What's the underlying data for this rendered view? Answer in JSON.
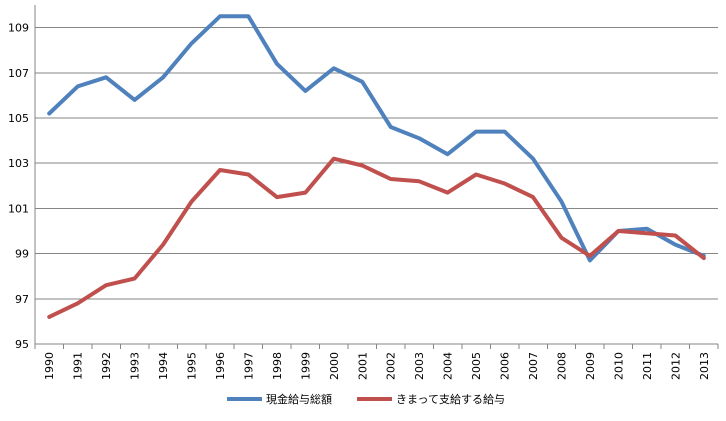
{
  "chart_data": {
    "type": "line",
    "title": "",
    "xlabel": "",
    "ylabel": "",
    "x": [
      "1990",
      "1991",
      "1992",
      "1993",
      "1994",
      "1995",
      "1996",
      "1997",
      "1998",
      "1999",
      "2000",
      "2001",
      "2002",
      "2003",
      "2004",
      "2005",
      "2006",
      "2007",
      "2008",
      "2009",
      "2010",
      "2011",
      "2012",
      "2013"
    ],
    "ylim": [
      95,
      110
    ],
    "yticks": [
      95,
      97,
      99,
      101,
      103,
      105,
      107,
      109
    ],
    "grid": "horizontal",
    "legend": "bottom",
    "series": [
      {
        "name": "現金給与総額",
        "color": "#4F81BD",
        "values": [
          105.2,
          106.4,
          106.8,
          105.8,
          106.8,
          108.3,
          109.5,
          109.5,
          107.4,
          106.2,
          107.2,
          106.6,
          104.6,
          104.1,
          103.4,
          104.4,
          104.4,
          103.2,
          101.3,
          98.7,
          100.0,
          100.1,
          99.4,
          98.9
        ]
      },
      {
        "name": "きまって支給する給与",
        "color": "#C0504D",
        "values": [
          96.2,
          96.8,
          97.6,
          97.9,
          99.4,
          101.3,
          102.7,
          102.5,
          101.5,
          101.7,
          103.2,
          102.9,
          102.3,
          102.2,
          101.7,
          102.5,
          102.1,
          101.5,
          99.7,
          98.9,
          100.0,
          99.9,
          99.8,
          98.8
        ]
      }
    ]
  }
}
